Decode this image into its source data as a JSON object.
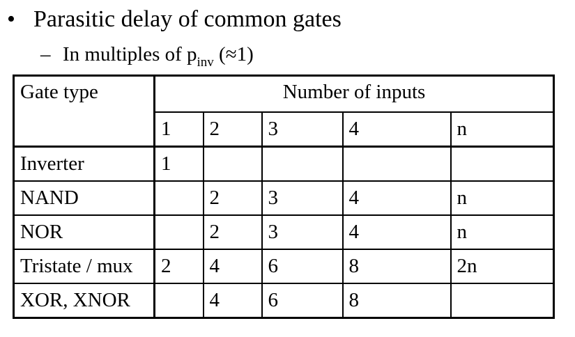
{
  "slide": {
    "bullet": "Parasitic delay of common gates",
    "sub_prefix": "In multiples of p",
    "sub_subscript": "inv",
    "sub_suffix": " (≈1)"
  },
  "table": {
    "gate_type_header": "Gate type",
    "number_of_inputs_header": "Number of inputs",
    "input_columns": [
      "1",
      "2",
      "3",
      "4",
      "n"
    ],
    "rows": [
      {
        "gate": "Inverter",
        "values": [
          "1",
          "",
          "",
          "",
          ""
        ]
      },
      {
        "gate": "NAND",
        "values": [
          "",
          "2",
          "3",
          "4",
          "n"
        ]
      },
      {
        "gate": "NOR",
        "values": [
          "",
          "2",
          "3",
          "4",
          "n"
        ]
      },
      {
        "gate": "Tristate / mux",
        "values": [
          "2",
          "4",
          "6",
          "8",
          "2n"
        ]
      },
      {
        "gate": "XOR, XNOR",
        "values": [
          "",
          "4",
          "6",
          "8",
          ""
        ]
      }
    ]
  }
}
